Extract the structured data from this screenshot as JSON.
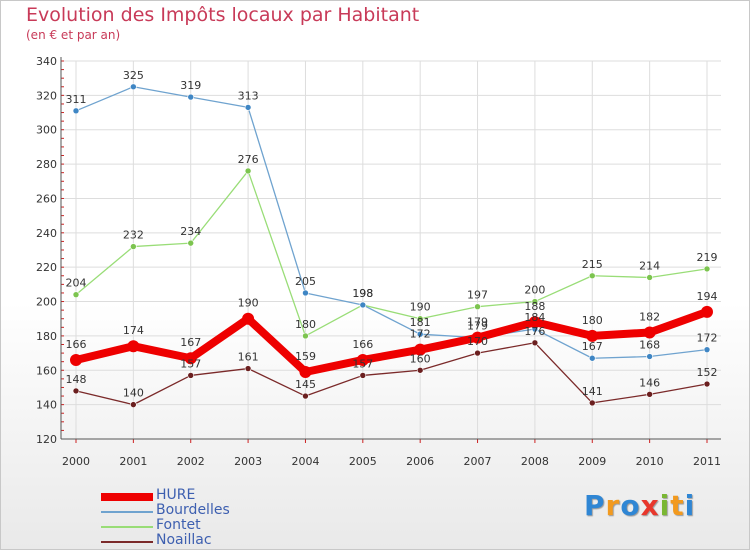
{
  "title": "Evolution des Impôts locaux par Habitant",
  "subtitle": "(en € et par an)",
  "brand": {
    "text": "Proxiti",
    "letters": [
      {
        "ch": "P",
        "color": "#2f86d4"
      },
      {
        "ch": "r",
        "color": "#f29a1f"
      },
      {
        "ch": "o",
        "color": "#2f86d4"
      },
      {
        "ch": "x",
        "color": "#e8372c"
      },
      {
        "ch": "i",
        "color": "#7ab733"
      },
      {
        "ch": "t",
        "color": "#f29a1f"
      },
      {
        "ch": "i",
        "color": "#2f86d4"
      }
    ]
  },
  "chart_data": {
    "type": "line",
    "title": "Evolution des Impôts locaux par Habitant",
    "subtitle": "(en € et par an)",
    "xlabel": "",
    "ylabel": "",
    "x": [
      "2000",
      "2001",
      "2002",
      "2003",
      "2004",
      "2005",
      "2006",
      "2007",
      "2008",
      "2009",
      "2010",
      "2011"
    ],
    "ylim": [
      120,
      340
    ],
    "yticks": [
      120,
      140,
      160,
      180,
      200,
      220,
      240,
      260,
      280,
      300,
      320,
      340
    ],
    "grid": true,
    "legend_position": "bottom-left",
    "series": [
      {
        "name": "Noaillac",
        "color": "#7b2a2a",
        "marker": "#6b1f1f",
        "width": 1.3,
        "values": [
          148,
          140,
          157,
          161,
          145,
          157,
          160,
          170,
          176,
          141,
          146,
          152
        ]
      },
      {
        "name": "Fontet",
        "color": "#99dd77",
        "marker": "#7cc44f",
        "width": 1.3,
        "values": [
          204,
          232,
          234,
          276,
          180,
          198,
          190,
          197,
          200,
          215,
          214,
          219
        ]
      },
      {
        "name": "Bourdelles",
        "color": "#6fa3cf",
        "marker": "#3f86c4",
        "width": 1.3,
        "values": [
          311,
          325,
          319,
          313,
          205,
          198,
          181,
          179,
          184,
          167,
          168,
          172
        ]
      },
      {
        "name": "HURE",
        "color": "#ee0000",
        "marker": "#ee0000",
        "width": 8,
        "values": [
          166,
          174,
          167,
          190,
          159,
          166,
          172,
          179,
          188,
          180,
          182,
          194
        ]
      }
    ],
    "legend": [
      "HURE",
      "Bourdelles",
      "Fontet",
      "Noaillac"
    ]
  }
}
